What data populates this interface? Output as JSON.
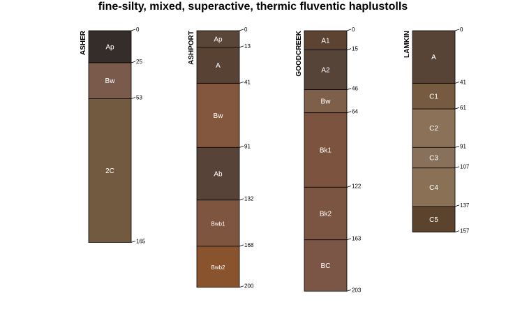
{
  "title": "fine-silty, mixed, superactive, thermic fluventic haplustolls",
  "chart_data": {
    "type": "soil-profile-sketch",
    "depth_unit": "cm",
    "profiles": [
      {
        "name": "ASHER",
        "max_depth": 165,
        "horizons": [
          {
            "name": "Ap",
            "top": 0,
            "bottom": 25,
            "color": "#352d29"
          },
          {
            "name": "Bw",
            "top": 25,
            "bottom": 53,
            "color": "#7a5a4b"
          },
          {
            "name": "2C",
            "top": 53,
            "bottom": 165,
            "color": "#715a40"
          }
        ]
      },
      {
        "name": "ASHPORT",
        "max_depth": 200,
        "horizons": [
          {
            "name": "Ap",
            "top": 0,
            "bottom": 13,
            "color": "#5a4639"
          },
          {
            "name": "A",
            "top": 13,
            "bottom": 41,
            "color": "#574234"
          },
          {
            "name": "Bw",
            "top": 41,
            "bottom": 91,
            "color": "#82573e"
          },
          {
            "name": "Ab",
            "top": 91,
            "bottom": 132,
            "color": "#574338"
          },
          {
            "name": "Bwb1",
            "top": 132,
            "bottom": 168,
            "color": "#7e5640"
          },
          {
            "name": "Bwb2",
            "top": 168,
            "bottom": 200,
            "color": "#88532d"
          }
        ]
      },
      {
        "name": "GOODCREEK",
        "max_depth": 203,
        "horizons": [
          {
            "name": "A1",
            "top": 0,
            "bottom": 15,
            "color": "#5c4332"
          },
          {
            "name": "A2",
            "top": 15,
            "bottom": 46,
            "color": "#574439"
          },
          {
            "name": "Bw",
            "top": 46,
            "bottom": 64,
            "color": "#7e5f49"
          },
          {
            "name": "Bk1",
            "top": 64,
            "bottom": 122,
            "color": "#7b533e"
          },
          {
            "name": "Bk2",
            "top": 122,
            "bottom": 163,
            "color": "#7b5442"
          },
          {
            "name": "BC",
            "top": 163,
            "bottom": 203,
            "color": "#7b5646"
          }
        ]
      },
      {
        "name": "LAMKIN",
        "max_depth": 157,
        "horizons": [
          {
            "name": "A",
            "top": 0,
            "bottom": 41,
            "color": "#574436"
          },
          {
            "name": "C1",
            "top": 41,
            "bottom": 61,
            "color": "#765b40"
          },
          {
            "name": "C2",
            "top": 61,
            "bottom": 91,
            "color": "#8a7158"
          },
          {
            "name": "C3",
            "top": 91,
            "bottom": 107,
            "color": "#88705a"
          },
          {
            "name": "C4",
            "top": 107,
            "bottom": 137,
            "color": "#8a7055"
          },
          {
            "name": "C5",
            "top": 137,
            "bottom": 157,
            "color": "#5b432d"
          }
        ]
      }
    ]
  }
}
